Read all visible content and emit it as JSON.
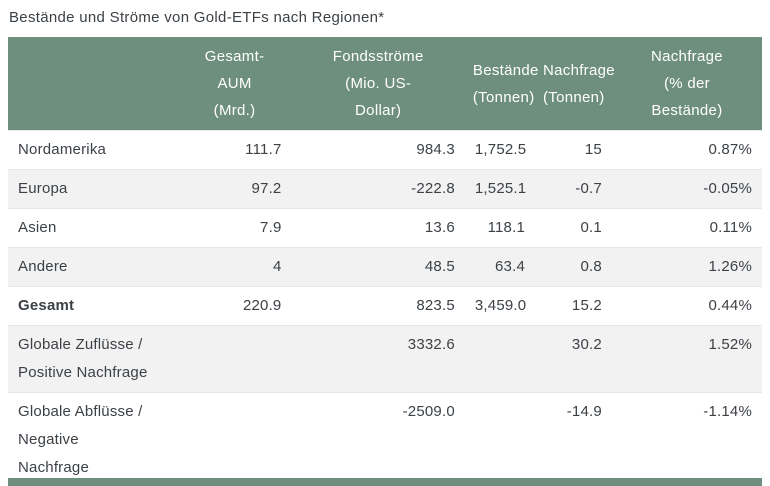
{
  "title": "Bestände und Ströme von Gold-ETFs nach Regionen*",
  "colors": {
    "header_bg": "#6f8f7e",
    "alt_row_bg": "#f2f2f2",
    "text": "#3c4146",
    "header_text": "#ffffff"
  },
  "chart_data": {
    "type": "table",
    "title": "Bestände und Ströme von Gold-ETFs nach Regionen*",
    "columns": [
      {
        "id": "region",
        "full": "",
        "lines": []
      },
      {
        "id": "gesamt_aum_mrd",
        "full": "Gesamt-AUM (Mrd.)",
        "lines": [
          "Gesamt-",
          "AUM",
          "(Mrd.)"
        ]
      },
      {
        "id": "fondsstroeme_mio_usd",
        "full": "Fondsströme (Mio. US-Dollar)",
        "lines": [
          "Fondsströme",
          "(Mio. US-",
          "Dollar)"
        ]
      },
      {
        "id": "bestaende_tonnen",
        "full": "Bestände (Tonnen)",
        "lines": [
          "Bestände",
          "(Tonnen)"
        ]
      },
      {
        "id": "nachfrage_tonnen",
        "full": "Nachfrage (Tonnen)",
        "lines": [
          "Nachfrage",
          "(Tonnen)"
        ]
      },
      {
        "id": "nachfrage_pct_bestaende",
        "full": "Nachfrage (% der Bestände)",
        "lines": [
          "Nachfrage",
          "(% der",
          "Bestände)"
        ]
      }
    ],
    "rows": [
      {
        "label": "Nordamerika",
        "label_lines": [
          "Nordamerika"
        ],
        "values": [
          "111.7",
          "984.3",
          "1,752.5",
          "15",
          "0.87%"
        ]
      },
      {
        "label": "Europa",
        "label_lines": [
          "Europa"
        ],
        "values": [
          "97.2",
          "-222.8",
          "1,525.1",
          "-0.7",
          "-0.05%"
        ]
      },
      {
        "label": "Asien",
        "label_lines": [
          "Asien"
        ],
        "values": [
          "7.9",
          "13.6",
          "118.1",
          "0.1",
          "0.11%"
        ]
      },
      {
        "label": "Andere",
        "label_lines": [
          "Andere"
        ],
        "values": [
          "4",
          "48.5",
          "63.4",
          "0.8",
          "1.26%"
        ]
      },
      {
        "label": "Gesamt",
        "label_lines": [
          "Gesamt"
        ],
        "values": [
          "220.9",
          "823.5",
          "3,459.0",
          "15.2",
          "0.44%"
        ]
      },
      {
        "label": "Globale Zuflüsse / Positive Nachfrage",
        "label_lines": [
          "Globale Zuflüsse /",
          "Positive Nachfrage"
        ],
        "values": [
          "",
          "3332.6",
          "",
          "30.2",
          "1.52%"
        ]
      },
      {
        "label": "Globale Abflüsse / Negative Nachfrage",
        "label_lines": [
          "Globale Abflüsse /",
          "Negative",
          "Nachfrage"
        ],
        "values": [
          "",
          "-2509.0",
          "",
          "-14.9",
          "-1.14%"
        ]
      }
    ]
  }
}
